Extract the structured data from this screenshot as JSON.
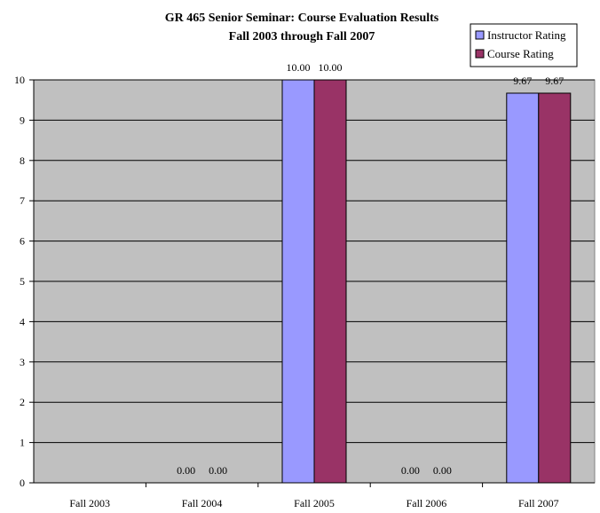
{
  "chart_data": {
    "type": "bar",
    "title": "GR 465 Senior Seminar: Course Evaluation Results",
    "subtitle": "Fall 2003 through Fall 2007",
    "categories": [
      "Fall 2003",
      "Fall 2004",
      "Fall 2005",
      "Fall 2006",
      "Fall 2007"
    ],
    "series": [
      {
        "name": "Instructor Rating",
        "color": "#9999ff",
        "values": [
          null,
          0,
          10,
          0,
          9.67
        ],
        "labels": [
          "",
          "0.00",
          "10.00",
          "0.00",
          "9.67"
        ]
      },
      {
        "name": "Course Rating",
        "color": "#993366",
        "values": [
          null,
          0,
          10,
          0,
          9.67
        ],
        "labels": [
          "",
          "0.00",
          "10.00",
          "0.00",
          "9.67"
        ]
      }
    ],
    "ylim": [
      0,
      10
    ],
    "yticks": [
      0,
      1,
      2,
      3,
      4,
      5,
      6,
      7,
      8,
      9,
      10
    ],
    "plot_background": "#c0c0c0",
    "grid": true,
    "legend_position": "top-right"
  }
}
